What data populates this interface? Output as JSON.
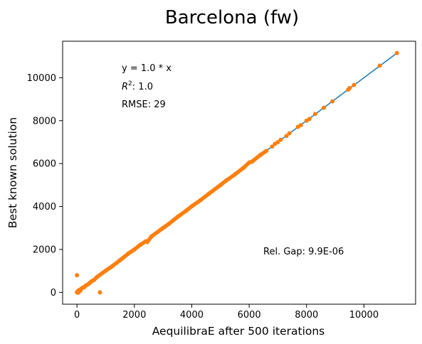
{
  "chart_data": {
    "type": "scatter",
    "title": "Barcelona (fw)",
    "xlabel": "AequilibraE after 500 iterations",
    "ylabel": "Best known solution",
    "xlim": [
      -500,
      11800
    ],
    "ylim": [
      -550,
      11700
    ],
    "xticks": [
      0,
      2000,
      4000,
      6000,
      8000,
      10000
    ],
    "yticks": [
      0,
      2000,
      4000,
      6000,
      8000,
      10000
    ],
    "grid": false,
    "fit_line": {
      "name": "y = 1.0 * x",
      "slope": 1.0,
      "intercept": 0,
      "x_range": [
        0,
        11150
      ],
      "color": "#1f77b4"
    },
    "annotations": {
      "equation": "y = 1.0 * x",
      "r2_label": "R",
      "r2_sup": "2",
      "r2_value": ":  1.0",
      "rmse": "RMSE: 29",
      "rel_gap": "Rel. Gap: 9.9E-06"
    },
    "series": [
      {
        "color": "#ff7f0e",
        "points": [
          [
            0,
            0
          ],
          [
            15,
            30
          ],
          [
            30,
            10
          ],
          [
            50,
            60
          ],
          [
            70,
            40
          ],
          [
            90,
            100
          ],
          [
            120,
            90
          ],
          [
            150,
            170
          ],
          [
            200,
            220
          ],
          [
            250,
            240
          ],
          [
            300,
            310
          ],
          [
            400,
            390
          ],
          [
            500,
            510
          ],
          [
            600,
            590
          ],
          [
            700,
            720
          ],
          [
            0,
            800
          ],
          [
            800,
            0
          ],
          [
            1000,
            1010
          ],
          [
            1200,
            1190
          ],
          [
            1500,
            1500
          ],
          [
            1800,
            1820
          ],
          [
            2000,
            2000
          ],
          [
            2200,
            2210
          ],
          [
            2400,
            2380
          ],
          [
            2450,
            2350
          ],
          [
            2600,
            2610
          ],
          [
            3000,
            3000
          ],
          [
            3200,
            3190
          ],
          [
            3500,
            3510
          ],
          [
            3800,
            3800
          ],
          [
            4000,
            4010
          ],
          [
            4300,
            4290
          ],
          [
            4600,
            4600
          ],
          [
            5000,
            5000
          ],
          [
            5200,
            5210
          ],
          [
            5500,
            5490
          ],
          [
            5800,
            5800
          ],
          [
            6000,
            6050
          ],
          [
            6100,
            6090
          ],
          [
            6400,
            6410
          ],
          [
            6600,
            6590
          ],
          [
            6800,
            6790
          ],
          [
            6900,
            6920
          ],
          [
            7000,
            7000
          ],
          [
            7100,
            7110
          ],
          [
            7300,
            7290
          ],
          [
            7400,
            7410
          ],
          [
            7700,
            7710
          ],
          [
            7800,
            7790
          ],
          [
            8000,
            8000
          ],
          [
            8100,
            8080
          ],
          [
            8300,
            8310
          ],
          [
            8600,
            8600
          ],
          [
            8900,
            8900
          ],
          [
            9450,
            9450
          ],
          [
            9500,
            9520
          ],
          [
            9650,
            9660
          ],
          [
            10550,
            10560
          ],
          [
            11150,
            11150
          ]
        ]
      }
    ]
  }
}
